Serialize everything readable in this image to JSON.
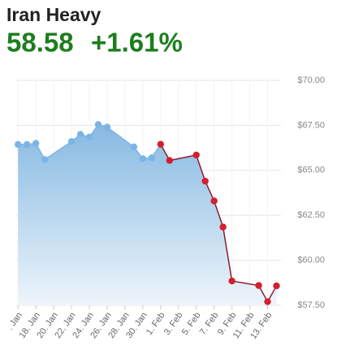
{
  "chart_data": {
    "type": "line",
    "title": "Iran Heavy",
    "price": "58.58",
    "change": "+1.61%",
    "xlim": [
      15.8,
      45.5
    ],
    "xticks": [
      {
        "value": 16,
        "label": ". Jan"
      },
      {
        "value": 18,
        "label": "18. Jan"
      },
      {
        "value": 20,
        "label": "20. Jan"
      },
      {
        "value": 22,
        "label": "22. Jan"
      },
      {
        "value": 24,
        "label": "24. Jan"
      },
      {
        "value": 26,
        "label": "26. Jan"
      },
      {
        "value": 28,
        "label": "28. Jan"
      },
      {
        "value": 30,
        "label": "30. Jan"
      },
      {
        "value": 32,
        "label": "1. Feb"
      },
      {
        "value": 34,
        "label": "3. Feb"
      },
      {
        "value": 36,
        "label": "5. Feb"
      },
      {
        "value": 38,
        "label": "7. Feb"
      },
      {
        "value": 40,
        "label": "9. Feb"
      },
      {
        "value": 42,
        "label": "11. Feb"
      },
      {
        "value": 44,
        "label": "13. Feb"
      }
    ],
    "ylim": [
      57.5,
      70
    ],
    "yticks": [
      {
        "value": 57.5,
        "label": "$57.50"
      },
      {
        "value": 60,
        "label": "$60.00"
      },
      {
        "value": 62.5,
        "label": "$62.50"
      },
      {
        "value": 65,
        "label": "$65.00"
      },
      {
        "value": 67.5,
        "label": "$67.50"
      },
      {
        "value": 70,
        "label": "$70.00"
      }
    ],
    "grid": true,
    "series": [
      {
        "color": "#7db4e6",
        "x": [
          16,
          17,
          18,
          19,
          22,
          23,
          24,
          25,
          26,
          29,
          30,
          31
        ],
        "values": [
          66.44,
          66.44,
          66.5,
          65.6,
          66.6,
          67.0,
          66.85,
          67.55,
          67.4,
          66.3,
          65.65,
          65.7
        ]
      },
      {
        "color": "#d2202f",
        "x": [
          32,
          33,
          36,
          37,
          38,
          39,
          40,
          43,
          44,
          45
        ],
        "values": [
          66.45,
          65.55,
          65.85,
          64.4,
          63.3,
          61.85,
          58.85,
          58.6,
          57.7,
          58.58
        ]
      }
    ]
  }
}
